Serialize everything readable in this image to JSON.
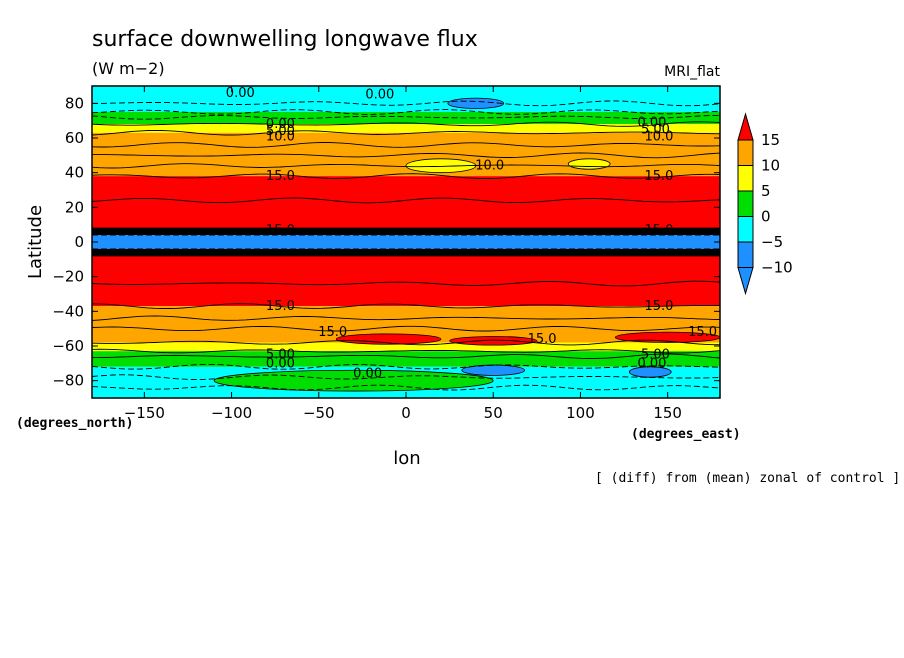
{
  "chart_data": {
    "type": "heatmap",
    "title": "surface downwelling longwave flux",
    "units": "(W m−2)",
    "model_label": "MRI_flat",
    "xlabel": "lon",
    "ylabel": "Latitude",
    "x_units_label": "(degrees_east)",
    "y_units_label": "(degrees_north)",
    "footnote": "[ (diff) from (mean) zonal of control ]",
    "xlim": [
      -180,
      180
    ],
    "ylim": [
      -90,
      90
    ],
    "x_ticks": [
      -150,
      -100,
      -50,
      0,
      50,
      100,
      150
    ],
    "y_ticks": [
      80,
      60,
      40,
      20,
      0,
      -20,
      -40,
      -60,
      -80
    ],
    "x_tick_labels": [
      "−150",
      "−100",
      "−50",
      "0",
      "50",
      "100",
      "150"
    ],
    "y_tick_labels": [
      "80",
      "60",
      "40",
      "20",
      "0",
      "−20",
      "−40",
      "−60",
      "−80"
    ],
    "colorbar": {
      "levels": [
        15,
        10,
        5,
        0,
        -5,
        -10
      ],
      "labels": [
        "15",
        "10",
        "5",
        "0",
        "−5",
        "−10"
      ],
      "colors": [
        "#ff0000",
        "#ffa500",
        "#ffff00",
        "#00dd00",
        "#00ffff",
        "#1e90ff"
      ],
      "over_color": "#ff0000",
      "under_color": "#1e90ff"
    },
    "bands": [
      {
        "lat_from": 90,
        "lat_to": 75,
        "value_class": "-5 to 0",
        "color": "#00ffff"
      },
      {
        "lat_from": 75,
        "lat_to": 68,
        "value_class": "0 to 5",
        "color": "#00dd00"
      },
      {
        "lat_from": 68,
        "lat_to": 63,
        "value_class": "5 to 10",
        "color": "#ffff00"
      },
      {
        "lat_from": 63,
        "lat_to": 38,
        "value_class": "10 to 15",
        "color": "#ffa500"
      },
      {
        "lat_from": 38,
        "lat_to": 8,
        "value_class": "> 15",
        "color": "#ff0000"
      },
      {
        "lat_from": 8,
        "lat_to": 4,
        "value_class": "strong gradient",
        "color": "#000000"
      },
      {
        "lat_from": 4,
        "lat_to": -4,
        "value_class": "< -10",
        "color": "#1e90ff"
      },
      {
        "lat_from": -4,
        "lat_to": -8,
        "value_class": "strong gradient",
        "color": "#000000"
      },
      {
        "lat_from": -8,
        "lat_to": -37,
        "value_class": "> 15",
        "color": "#ff0000"
      },
      {
        "lat_from": -37,
        "lat_to": -58,
        "value_class": "10 to 15",
        "color": "#ffa500"
      },
      {
        "lat_from": -58,
        "lat_to": -63,
        "value_class": "5 to 10",
        "color": "#ffff00"
      },
      {
        "lat_from": -63,
        "lat_to": -72,
        "value_class": "0 to 5",
        "color": "#00dd00"
      },
      {
        "lat_from": -72,
        "lat_to": -90,
        "value_class": "-5 to 0",
        "color": "#00ffff"
      }
    ],
    "patches": [
      {
        "lon": 20,
        "lat": 44,
        "rx": 20,
        "ry": 4,
        "color": "#ffff00"
      },
      {
        "lon": 105,
        "lat": 45,
        "rx": 12,
        "ry": 3,
        "color": "#ffff00"
      },
      {
        "lon": 40,
        "lat": 80,
        "rx": 16,
        "ry": 3,
        "color": "#1e90ff"
      },
      {
        "lon": 50,
        "lat": -74,
        "rx": 18,
        "ry": 3,
        "color": "#1e90ff"
      },
      {
        "lon": 140,
        "lat": -75,
        "rx": 12,
        "ry": 3,
        "color": "#1e90ff"
      },
      {
        "lon": -10,
        "lat": -56,
        "rx": 30,
        "ry": 3,
        "color": "#ff0000"
      },
      {
        "lon": 150,
        "lat": -55,
        "rx": 30,
        "ry": 3,
        "color": "#ff0000"
      },
      {
        "lon": 50,
        "lat": -57,
        "rx": 25,
        "ry": 2.5,
        "color": "#ff0000"
      },
      {
        "lon": -30,
        "lat": -80,
        "rx": 80,
        "ry": 6,
        "color": "#00dd00"
      }
    ],
    "contour_labels": [
      {
        "text": "0.00",
        "lon": -95,
        "lat": 86
      },
      {
        "text": "0.00",
        "lon": -15,
        "lat": 85
      },
      {
        "text": "0.00",
        "lon": -72,
        "lat": 68
      },
      {
        "text": "5.00",
        "lon": -72,
        "lat": 64
      },
      {
        "text": "10.0",
        "lon": -72,
        "lat": 61
      },
      {
        "text": "0.00",
        "lon": 141,
        "lat": 69
      },
      {
        "text": "5.00",
        "lon": 143,
        "lat": 65
      },
      {
        "text": "10.0",
        "lon": 145,
        "lat": 61
      },
      {
        "text": "10.0",
        "lon": 48,
        "lat": 44
      },
      {
        "text": "15.0",
        "lon": -72,
        "lat": 38
      },
      {
        "text": "15.0",
        "lon": 145,
        "lat": 38
      },
      {
        "text": "15.0",
        "lon": -72,
        "lat": 7
      },
      {
        "text": "15.0",
        "lon": 145,
        "lat": 7
      },
      {
        "text": "15.0",
        "lon": -72,
        "lat": -37
      },
      {
        "text": "15.0",
        "lon": 145,
        "lat": -37
      },
      {
        "text": "15.0",
        "lon": -42,
        "lat": -52
      },
      {
        "text": "15.0",
        "lon": 78,
        "lat": -56
      },
      {
        "text": "15.0",
        "lon": 170,
        "lat": -52
      },
      {
        "text": "5.00",
        "lon": -72,
        "lat": -65
      },
      {
        "text": "0.00",
        "lon": -72,
        "lat": -70
      },
      {
        "text": "5.00",
        "lon": 143,
        "lat": -65
      },
      {
        "text": "0.00",
        "lon": 141,
        "lat": -70
      },
      {
        "text": "0.00",
        "lon": -22,
        "lat": -76
      }
    ]
  }
}
